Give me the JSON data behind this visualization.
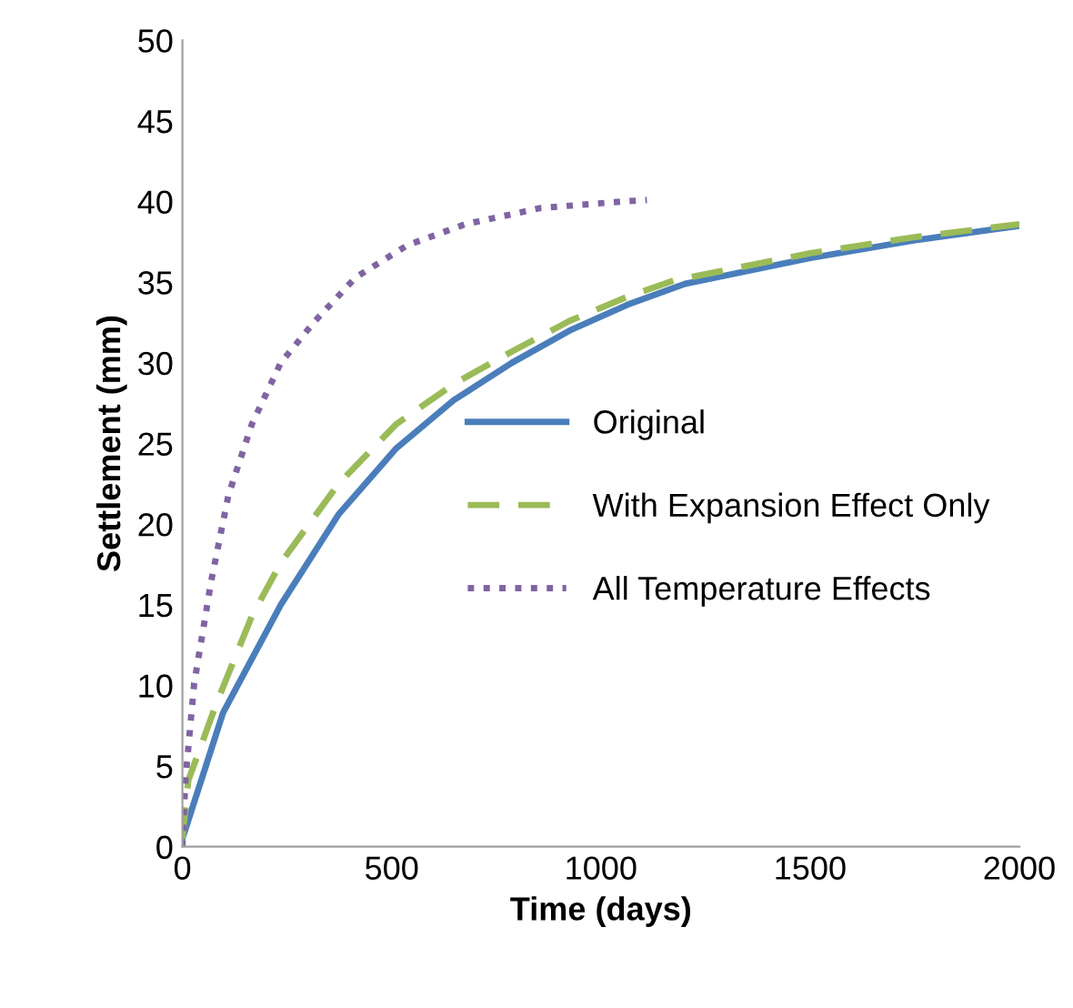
{
  "chart_data": {
    "type": "line",
    "xlabel": "Time (days)",
    "ylabel": "Settlement (mm)",
    "xlim": [
      0,
      2000
    ],
    "xticks": [
      0,
      500,
      1000,
      1500,
      2000
    ],
    "ylim": [
      0,
      50
    ],
    "yticks": [
      0,
      5,
      10,
      15,
      20,
      25,
      30,
      35,
      40,
      45,
      50
    ],
    "grid": false,
    "legend": "right",
    "series": [
      {
        "name": "Original",
        "color": "#4a7ebb",
        "line_style": "solid",
        "x": [
          0,
          97,
          235,
          373,
          511,
          649,
          787,
          925,
          1063,
          1201,
          1500,
          1750,
          2000
        ],
        "values": [
          0.5,
          8.3,
          15.0,
          20.6,
          24.7,
          27.7,
          30.0,
          32.0,
          33.6,
          34.9,
          36.5,
          37.6,
          38.5
        ]
      },
      {
        "name": "With Expansion Effect Only",
        "color": "#9bbb59",
        "line_style": "dashed",
        "x": [
          0,
          14,
          83,
          166,
          235,
          373,
          511,
          649,
          787,
          925,
          1063,
          1173,
          1500,
          1750,
          2000
        ],
        "values": [
          0.5,
          4.1,
          9.0,
          14.3,
          17.6,
          22.5,
          26.2,
          28.7,
          30.7,
          32.6,
          34.1,
          35.1,
          36.8,
          37.8,
          38.6
        ]
      },
      {
        "name": "All Temperature Effects",
        "color": "#8064a2",
        "line_style": "dotted",
        "x": [
          0,
          7,
          28,
          69,
          110,
          166,
          235,
          317,
          414,
          538,
          676,
          856,
          1049,
          1110
        ],
        "values": [
          0,
          4.1,
          10.1,
          16.5,
          21.8,
          26.2,
          30.0,
          32.6,
          35.3,
          37.3,
          38.6,
          39.6,
          40.0,
          40.1
        ]
      }
    ]
  }
}
